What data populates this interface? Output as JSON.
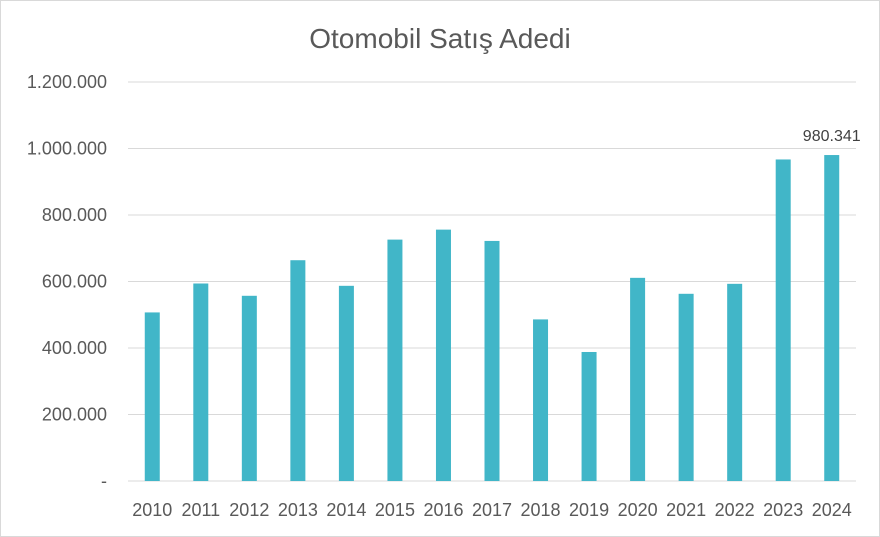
{
  "chart_data": {
    "type": "bar",
    "title": "Otomobil Satış Adedi",
    "categories": [
      "2010",
      "2011",
      "2012",
      "2013",
      "2014",
      "2015",
      "2016",
      "2017",
      "2018",
      "2019",
      "2020",
      "2021",
      "2022",
      "2023",
      "2024"
    ],
    "values": [
      507000,
      594000,
      557000,
      664000,
      587000,
      726000,
      756000,
      722000,
      486000,
      388000,
      611000,
      563000,
      593000,
      967000,
      980341
    ],
    "ylim": [
      0,
      1200000
    ],
    "yticks": [
      0,
      200000,
      400000,
      600000,
      800000,
      1000000,
      1200000
    ],
    "ytick_labels": [
      "-",
      "200.000",
      "400.000",
      "600.000",
      "800.000",
      "1.000.000",
      "1.200.000"
    ],
    "data_labels": [
      {
        "category": "2024",
        "text": "980.341"
      }
    ],
    "grid": true,
    "colors": {
      "bar": "#41b6c8",
      "grid": "#d9d9d9",
      "text": "#595959"
    }
  }
}
